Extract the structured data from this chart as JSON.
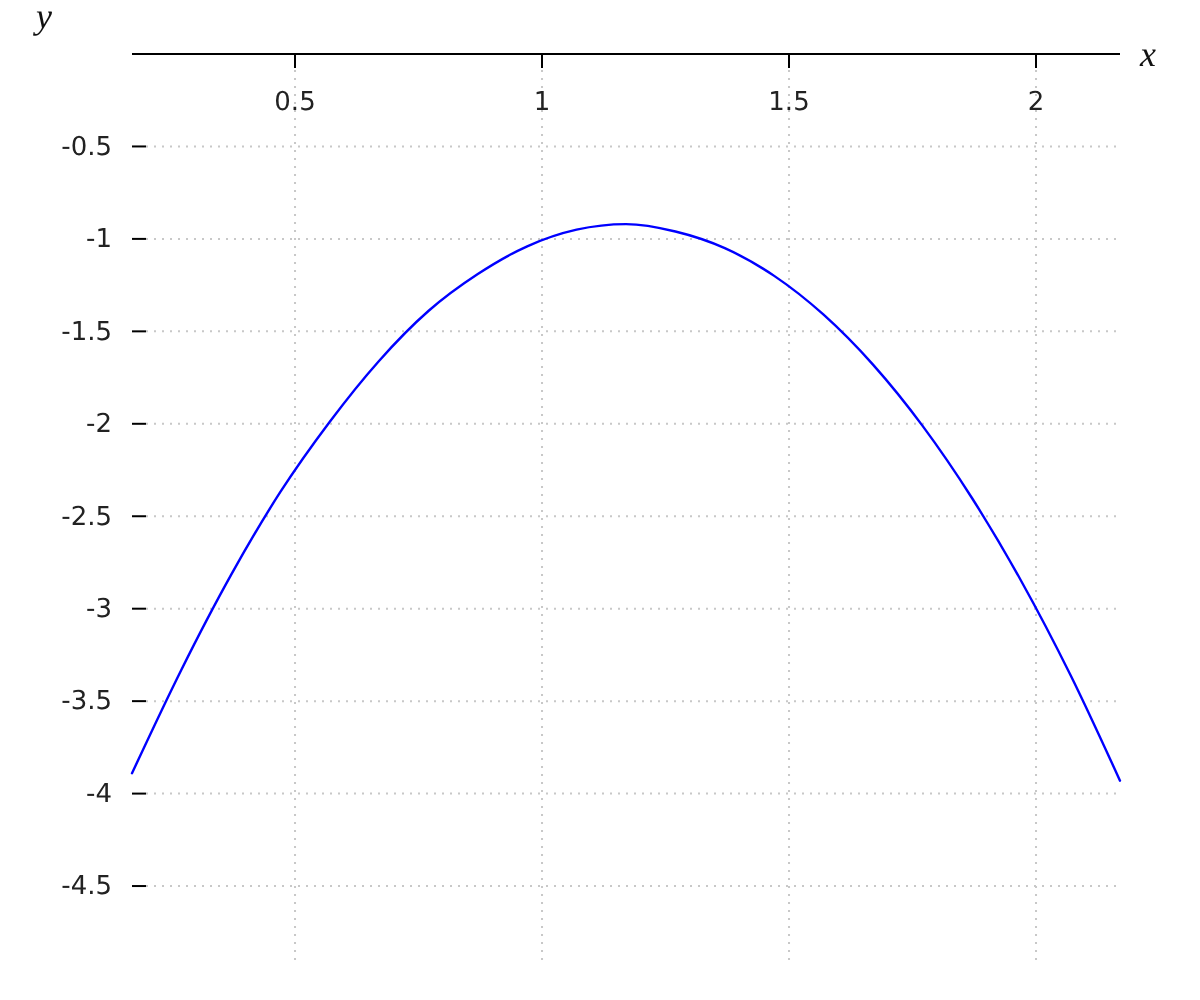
{
  "chart_data": {
    "type": "line",
    "xlabel": "x",
    "ylabel": "y",
    "x": [
      0.17,
      0.27,
      0.37,
      0.47,
      0.57,
      0.67,
      0.77,
      0.87,
      0.97,
      1.07,
      1.17,
      1.27,
      1.37,
      1.47,
      1.57,
      1.67,
      1.77,
      1.87,
      1.97,
      2.07,
      2.17
    ],
    "series": [
      {
        "color": "#0000ff",
        "values": [
          -3.89,
          -3.33,
          -2.82,
          -2.37,
          -1.99,
          -1.66,
          -1.39,
          -1.19,
          -1.04,
          -0.95,
          -0.92,
          -0.96,
          -1.05,
          -1.2,
          -1.41,
          -1.68,
          -2.01,
          -2.4,
          -2.85,
          -3.36,
          -3.93
        ]
      }
    ],
    "xlim": [
      0.17,
      2.17
    ],
    "ylim": [
      -4.9,
      0
    ],
    "xticks": [
      0.5,
      1,
      1.5,
      2
    ],
    "yticks": [
      -4.5,
      -4,
      -3.5,
      -3,
      -2.5,
      -2,
      -1.5,
      -1,
      -0.5
    ],
    "grid": true,
    "line_style": "solid"
  }
}
